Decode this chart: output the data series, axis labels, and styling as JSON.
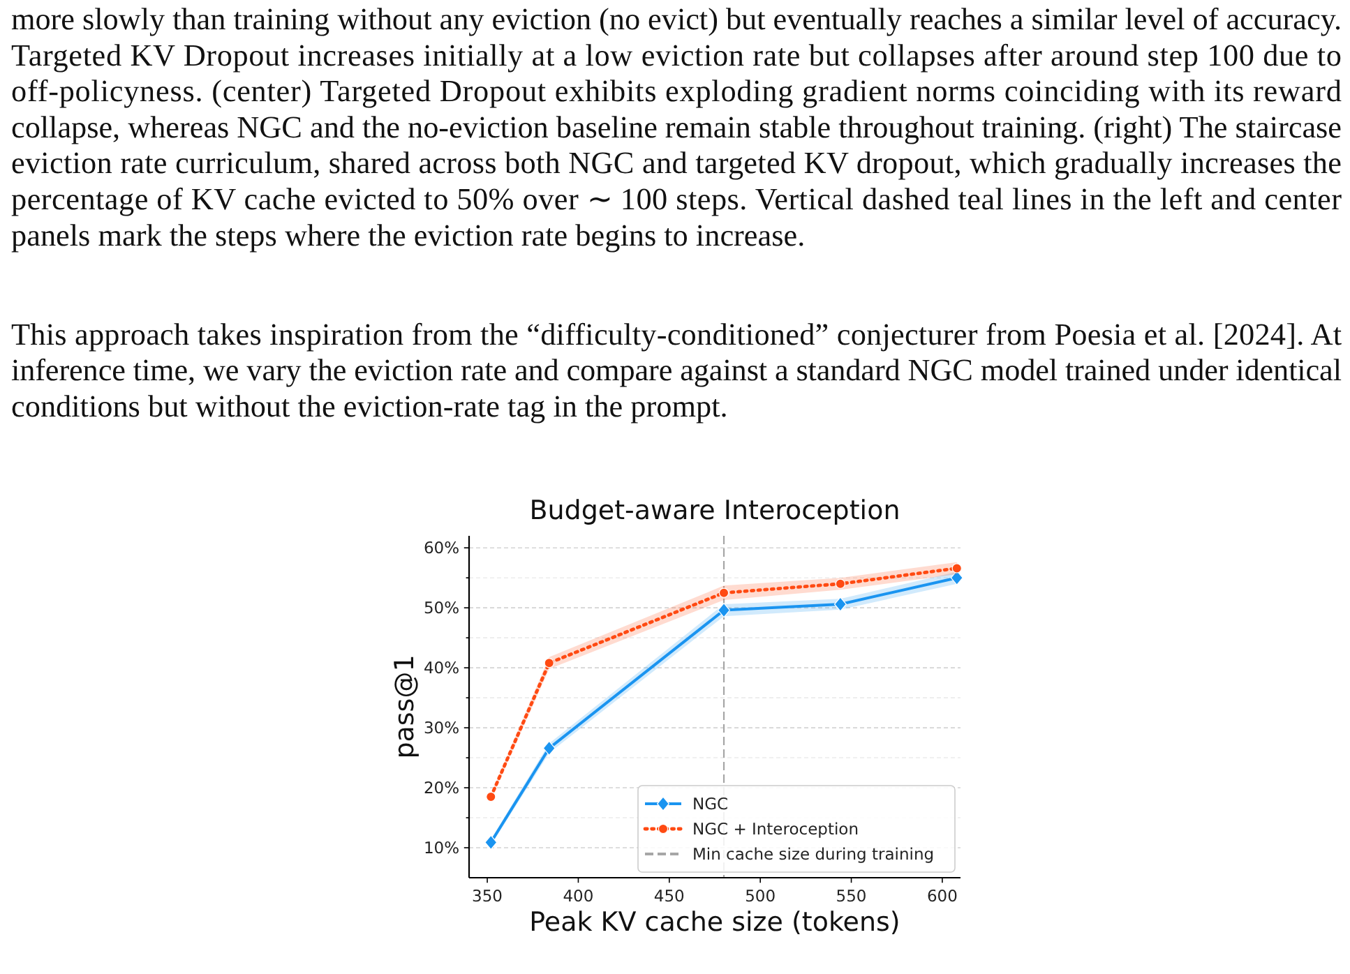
{
  "chart_data": {
    "type": "line",
    "title": "Budget-aware Interoception",
    "xlabel": "Peak KV cache size (tokens)",
    "ylabel": "pass@1",
    "x": [
      352,
      384,
      480,
      544,
      608
    ],
    "xlim": [
      340,
      610
    ],
    "xticks": [
      350,
      400,
      450,
      500,
      550,
      600
    ],
    "ylim": [
      5,
      62
    ],
    "yticks": [
      {
        "value": 10,
        "label": "10%"
      },
      {
        "value": 15,
        "label": null
      },
      {
        "value": 20,
        "label": "20%"
      },
      {
        "value": 25,
        "label": null
      },
      {
        "value": 30,
        "label": "30%"
      },
      {
        "value": 35,
        "label": null
      },
      {
        "value": 40,
        "label": "40%"
      },
      {
        "value": 45,
        "label": null
      },
      {
        "value": 50,
        "label": "50%"
      },
      {
        "value": 55,
        "label": null
      },
      {
        "value": 60,
        "label": "60%"
      }
    ],
    "series": [
      {
        "name": "NGC",
        "color": "#1a94f0",
        "values": [
          10.9,
          26.6,
          49.6,
          50.6,
          55.0
        ],
        "lower": [
          10.4,
          25.8,
          48.6,
          49.7,
          54.0
        ],
        "upper": [
          11.4,
          27.4,
          50.6,
          51.5,
          56.0
        ],
        "marker": "diamond",
        "line_style": "solid"
      },
      {
        "name": "NGC + Interoception",
        "color": "#ff4a12",
        "values": [
          18.5,
          40.8,
          52.5,
          54.0,
          56.6
        ],
        "lower": [
          18.0,
          39.8,
          51.3,
          53.0,
          55.6
        ],
        "upper": [
          19.0,
          41.8,
          53.7,
          55.0,
          57.6
        ],
        "marker": "circle",
        "line_style": "dotted"
      }
    ],
    "ref_lines": [
      {
        "axis": "x",
        "value": 480,
        "label": "Min cache size during training",
        "color": "#a6a6a6",
        "line_style": "dashed"
      }
    ],
    "grid": "y",
    "legend": "bottom right",
    "annotations": [
      "more slowly than training without any eviction (no evict) but eventually reaches a similar level of accuracy.\nTargeted KV Dropout increases initially at a low eviction rate but collapses after around step 100 due to\noff-policyness. (center) Targeted Dropout exhibits exploding gradient norms coinciding with its reward\ncollapse, whereas NGC and the no-eviction baseline remain stable throughout training. (right) The staircase\neviction rate curriculum, shared across both NGC and targeted KV dropout, which gradually increases the\npercentage of KV cache evicted to 50% over ∼ 100 steps. Vertical dashed teal lines in the left and center\npanels mark the steps where the eviction rate begins to increase.",
      "This approach takes inspiration from the “difficulty-conditioned” conjecturer from Poesia et al. [2024]. At\ninference time, we vary the eviction rate and compare against a standard NGC model trained under identical\nconditions but without the eviction-rate tag in the prompt."
    ]
  }
}
